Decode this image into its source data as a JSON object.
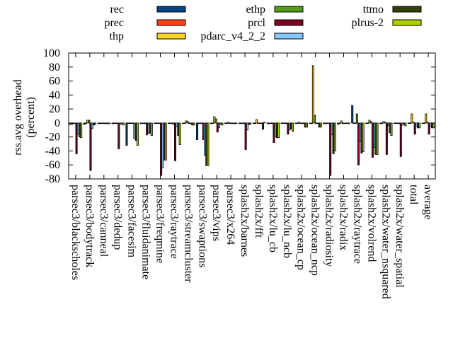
{
  "chart_data": {
    "type": "bar",
    "ylabel": "rss.avg overhead\n(percent)",
    "ylabel_lines": [
      "rss.avg overhead",
      "(percent)"
    ],
    "ylim": [
      -80,
      100
    ],
    "yticks": [
      -80,
      -60,
      -40,
      -20,
      0,
      20,
      40,
      60,
      80,
      100
    ],
    "grid": false,
    "legend_position": "top",
    "categories": [
      "parsec3/blackscholes",
      "parsec3/bodytrack",
      "parsec3/canneal",
      "parsec3/dedup",
      "parsec3/facesim",
      "parsec3/fluidanimate",
      "parsec3/freqmine",
      "parsec3/raytrace",
      "parsec3/streamcluster",
      "parsec3/swaptions",
      "parsec3/vips",
      "parsec3/x264",
      "splash2x/barnes",
      "splash2x/fft",
      "splash2x/lu_cb",
      "splash2x/lu_ncb",
      "splash2x/ocean_cp",
      "splash2x/ocean_ncp",
      "splash2x/radiosity",
      "splash2x/radix",
      "splash2x/raytrace",
      "splash2x/volrend",
      "splash2x/water_nsquared",
      "splash2x/water_spatial",
      "total",
      "average"
    ],
    "series": [
      {
        "name": "rec",
        "color": "#004586",
        "values": [
          -2,
          -2,
          -1,
          -1,
          -32,
          -1,
          -1,
          -1,
          0,
          -24,
          -1,
          0,
          -1,
          0,
          -1,
          0,
          0,
          0,
          -1,
          -2,
          25,
          0,
          -1,
          0,
          0,
          0
        ]
      },
      {
        "name": "prec",
        "color": "#ff420e",
        "values": [
          -2,
          0,
          -1,
          -1,
          0,
          0,
          0,
          0,
          0,
          0,
          0,
          0,
          0,
          0,
          0,
          0,
          0,
          0,
          -1,
          0,
          0,
          0,
          0,
          0,
          0,
          0
        ]
      },
      {
        "name": "thp",
        "color": "#ffd320",
        "values": [
          0,
          4,
          0,
          0,
          0,
          0,
          0,
          0,
          3,
          0,
          9,
          1,
          0,
          5,
          0,
          0,
          1,
          82,
          0,
          3,
          0,
          4,
          2,
          0,
          13,
          13
        ]
      },
      {
        "name": "ethp",
        "color": "#579d1c",
        "values": [
          0,
          4,
          0,
          0,
          0,
          0,
          0,
          -2,
          2,
          0,
          6,
          0,
          0,
          0,
          0,
          0,
          0,
          11,
          0,
          0,
          13,
          2,
          1,
          0,
          1,
          1
        ]
      },
      {
        "name": "prcl",
        "color": "#7e0021",
        "values": [
          -44,
          -68,
          -1,
          -37,
          0,
          -17,
          -75,
          -54,
          0,
          -24,
          -13,
          0,
          -38,
          0,
          -28,
          -16,
          0,
          0,
          -75,
          0,
          -60,
          -49,
          -45,
          -48,
          -16,
          -16
        ]
      },
      {
        "name": "pdarc_v4_2_2",
        "color": "#83caff",
        "values": [
          -16,
          -8,
          -1,
          -2,
          -22,
          -14,
          -64,
          -5,
          -1,
          -46,
          -7,
          -1,
          -10,
          -1,
          -19,
          -10,
          0,
          0,
          -17,
          0,
          -27,
          -35,
          -4,
          -3,
          -5,
          -5
        ]
      },
      {
        "name": "ttmo",
        "color": "#314004",
        "values": [
          -20,
          -3,
          -1,
          -1,
          -25,
          -15,
          -53,
          -18,
          -3,
          -61,
          -2,
          -1,
          -2,
          -9,
          -21,
          -8,
          -6,
          -6,
          -44,
          0,
          -43,
          -45,
          -14,
          -2,
          -7,
          -7
        ]
      },
      {
        "name": "plrus-2",
        "color": "#aecf00",
        "values": [
          -21,
          -2,
          -1,
          -3,
          -32,
          -18,
          -53,
          -31,
          -3,
          -61,
          -3,
          0,
          -2,
          1,
          -21,
          -12,
          -6,
          -6,
          -40,
          -1,
          -41,
          -45,
          -18,
          -4,
          -7,
          -7
        ]
      }
    ]
  }
}
